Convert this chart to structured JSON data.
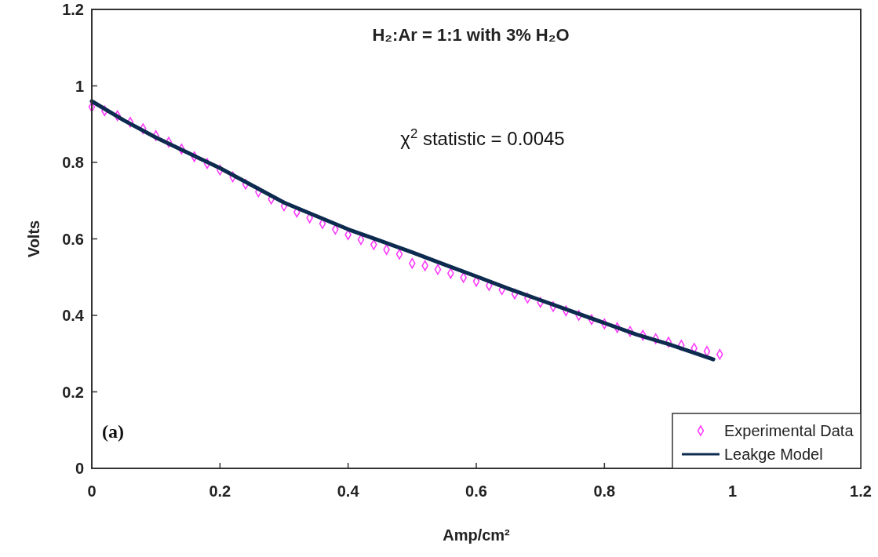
{
  "chart_data": {
    "type": "line",
    "title": "H₂:Ar = 1:1 with 3% H₂O",
    "xlabel": "Amp/cm²",
    "ylabel": "Volts",
    "annotations": [
      "χ$^{2}$ statistic = 0.0045",
      "(a)"
    ],
    "xlim": [
      0,
      1.2
    ],
    "ylim": [
      0,
      1.2
    ],
    "xticks": [
      0,
      0.2,
      0.4,
      0.6,
      0.8,
      1,
      1.2
    ],
    "yticks": [
      0,
      0.2,
      0.4,
      0.6,
      0.8,
      1,
      1.2
    ],
    "grid": false,
    "legend": "bottom right",
    "series": [
      {
        "name": "Experimental Data",
        "type": "scatter",
        "marker": "diamond",
        "color": "#ff33ff",
        "x": [
          0,
          0.02,
          0.04,
          0.06,
          0.08,
          0.1,
          0.12,
          0.14,
          0.16,
          0.18,
          0.2,
          0.22,
          0.24,
          0.26,
          0.28,
          0.3,
          0.32,
          0.34,
          0.36,
          0.38,
          0.4,
          0.42,
          0.44,
          0.46,
          0.48,
          0.5,
          0.52,
          0.54,
          0.56,
          0.58,
          0.6,
          0.62,
          0.64,
          0.66,
          0.68,
          0.7,
          0.72,
          0.74,
          0.76,
          0.78,
          0.8,
          0.82,
          0.84,
          0.86,
          0.88,
          0.9,
          0.92,
          0.94,
          0.96,
          0.98
        ],
        "values": [
          0.945,
          0.935,
          0.922,
          0.905,
          0.888,
          0.87,
          0.853,
          0.835,
          0.815,
          0.797,
          0.78,
          0.762,
          0.743,
          0.723,
          0.704,
          0.686,
          0.67,
          0.655,
          0.64,
          0.625,
          0.611,
          0.598,
          0.585,
          0.572,
          0.56,
          0.536,
          0.53,
          0.52,
          0.51,
          0.499,
          0.489,
          0.478,
          0.467,
          0.456,
          0.445,
          0.434,
          0.423,
          0.412,
          0.4,
          0.389,
          0.378,
          0.368,
          0.358,
          0.348,
          0.339,
          0.33,
          0.322,
          0.314,
          0.306,
          0.298
        ]
      },
      {
        "name": "Leakge Model",
        "type": "line",
        "marker": "none",
        "line_style": "solid",
        "color": "#0d2b4e",
        "x": [
          0,
          0.05,
          0.1,
          0.15,
          0.2,
          0.25,
          0.3,
          0.35,
          0.4,
          0.45,
          0.5,
          0.55,
          0.6,
          0.65,
          0.7,
          0.75,
          0.8,
          0.85,
          0.9,
          0.97
        ],
        "values": [
          0.96,
          0.91,
          0.865,
          0.825,
          0.785,
          0.74,
          0.695,
          0.66,
          0.625,
          0.595,
          0.565,
          0.533,
          0.502,
          0.47,
          0.44,
          0.41,
          0.38,
          0.35,
          0.325,
          0.285
        ]
      }
    ]
  }
}
